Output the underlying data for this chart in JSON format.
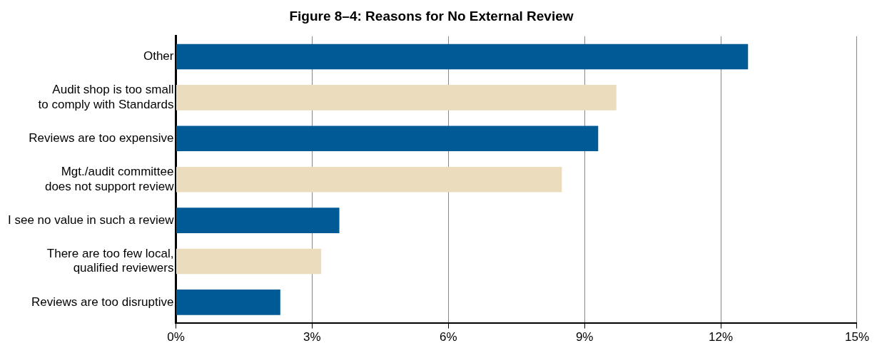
{
  "chart_data": {
    "type": "bar",
    "orientation": "horizontal",
    "title": "Figure 8–4: Reasons for No External Review",
    "categories": [
      "Other",
      "Audit shop is too small\nto comply with Standards",
      "Reviews are too expensive",
      "Mgt./audit committee\ndoes not support review",
      "I see no value in such a review",
      "There are too few local,\nqualified reviewers",
      "Reviews are too disruptive"
    ],
    "values": [
      12.6,
      9.7,
      9.3,
      8.5,
      3.6,
      3.2,
      2.3
    ],
    "colors": [
      "#005a96",
      "#eadcbc",
      "#005a96",
      "#eadcbc",
      "#005a96",
      "#eadcbc",
      "#005a96"
    ],
    "xlim": [
      0,
      15
    ],
    "xticks": [
      {
        "value": 0,
        "label": "0%"
      },
      {
        "value": 3,
        "label": "3%"
      },
      {
        "value": 6,
        "label": "6%"
      },
      {
        "value": 9,
        "label": "9%"
      },
      {
        "value": 12,
        "label": "12%"
      },
      {
        "value": 15,
        "label": "15%"
      }
    ],
    "grid": "x"
  }
}
